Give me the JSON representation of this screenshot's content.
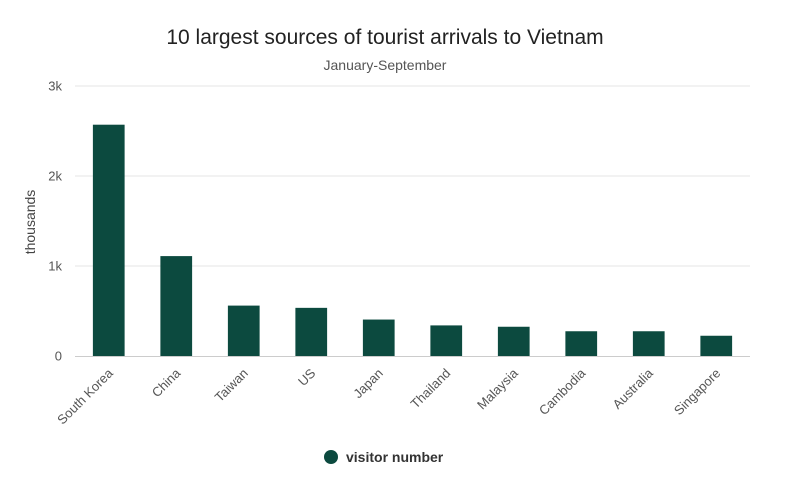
{
  "chart_data": {
    "type": "bar",
    "title": "10 largest sources of tourist arrivals to Vietnam",
    "subtitle": "January-September",
    "ylabel": "thousands",
    "xlabel": "",
    "categories": [
      "South Korea",
      "China",
      "Taiwan",
      "US",
      "Japan",
      "Thailand",
      "Malaysia",
      "Cambodia",
      "Australia",
      "Singapore"
    ],
    "series": [
      {
        "name": "visitor number",
        "color": "#0c4a3f",
        "values": [
          2570,
          1110,
          560,
          535,
          405,
          340,
          325,
          275,
          275,
          225
        ]
      }
    ],
    "ylim": [
      0,
      3000
    ],
    "yticks": [
      {
        "value": 0,
        "label": "0"
      },
      {
        "value": 1000,
        "label": "1k"
      },
      {
        "value": 2000,
        "label": "2k"
      },
      {
        "value": 3000,
        "label": "3k"
      }
    ],
    "grid": true,
    "legend_position": "bottom-center"
  }
}
